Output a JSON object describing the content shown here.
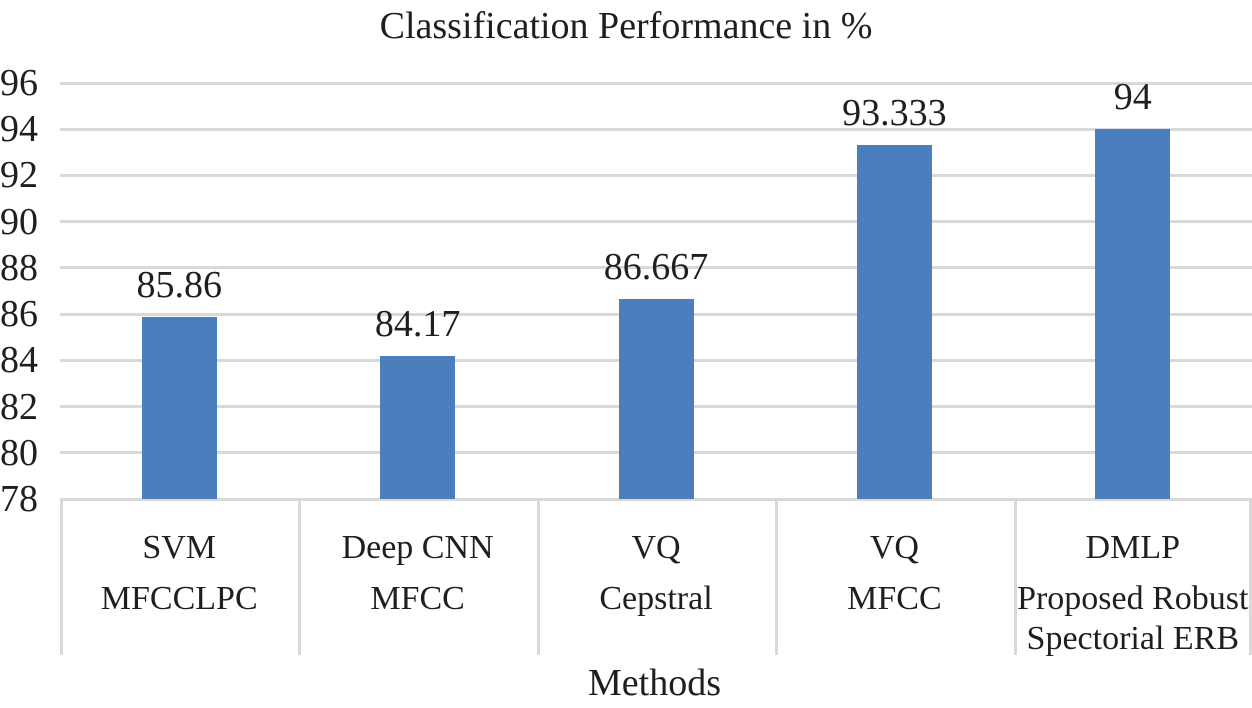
{
  "chart_data": {
    "type": "bar",
    "title": "Classification Performance in %",
    "xlabel": "Methods",
    "ylabel": "",
    "ylim": [
      78,
      96
    ],
    "ytick_step": 2,
    "yticks": [
      78,
      80,
      82,
      84,
      86,
      88,
      90,
      92,
      94,
      96
    ],
    "categories": [
      "SVM",
      "Deep CNN",
      "VQ",
      "VQ",
      "DMLP"
    ],
    "category_sublabels": [
      "MFCCLPC",
      "MFCC",
      "Cepstral",
      "MFCC",
      "Proposed Robust Spectorial ERB"
    ],
    "values": [
      85.86,
      84.17,
      86.667,
      93.333,
      94
    ],
    "value_labels": [
      "85.86",
      "84.17",
      "86.667",
      "93.333",
      "94"
    ],
    "grid": true,
    "legend": false,
    "colors": {
      "bar": "#4A7EBC",
      "gridline": "#D9D9D9",
      "text": "#1F1F1F"
    }
  }
}
